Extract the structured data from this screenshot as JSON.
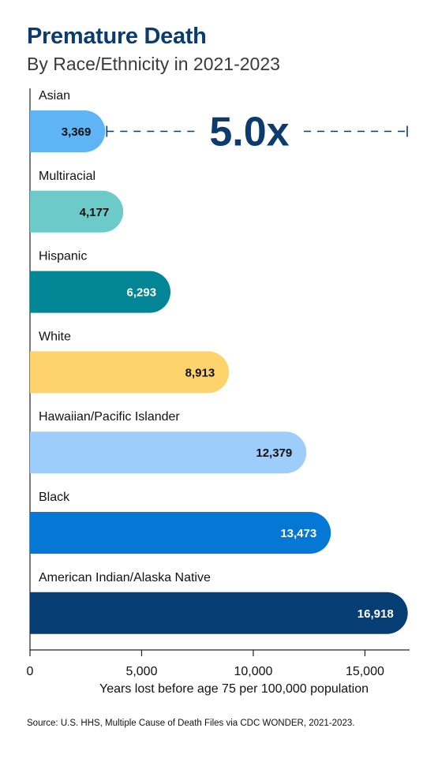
{
  "chart_data": {
    "type": "bar",
    "orientation": "horizontal",
    "title": "Premature Death",
    "subtitle": "By Race/Ethnicity in 2021-2023",
    "categories": [
      "Asian",
      "Multiracial",
      "Hispanic",
      "White",
      "Hawaiian/Pacific Islander",
      "Black",
      "American Indian/Alaska Native"
    ],
    "values": [
      3369,
      4177,
      6293,
      8913,
      12379,
      13473,
      16918
    ],
    "value_labels": [
      "3,369",
      "4,177",
      "6,293",
      "8,913",
      "12,379",
      "13,473",
      "16,918"
    ],
    "bar_colors": [
      "#5eb4f5",
      "#6ccac8",
      "#028695",
      "#ffd36b",
      "#9dcdfb",
      "#0577d4",
      "#063d73"
    ],
    "value_label_colors": [
      "#111111",
      "#111111",
      "#ffffff",
      "#111111",
      "#111111",
      "#ffffff",
      "#ffffff"
    ],
    "xlabel": "Years lost before age 75 per 100,000 population",
    "xlim": [
      0,
      17000
    ],
    "xticks": [
      0,
      5000,
      10000,
      15000
    ],
    "xtick_labels": [
      "0",
      "5,000",
      "10,000",
      "15,000"
    ],
    "annotation": {
      "text": "5.0x",
      "from_value": 3369,
      "to_value": 17000,
      "color": "#0b3c6d"
    },
    "grid": false,
    "legend": "none"
  },
  "source": "Source: U.S. HHS, Multiple Cause of Death Files via CDC WONDER, 2021-2023."
}
